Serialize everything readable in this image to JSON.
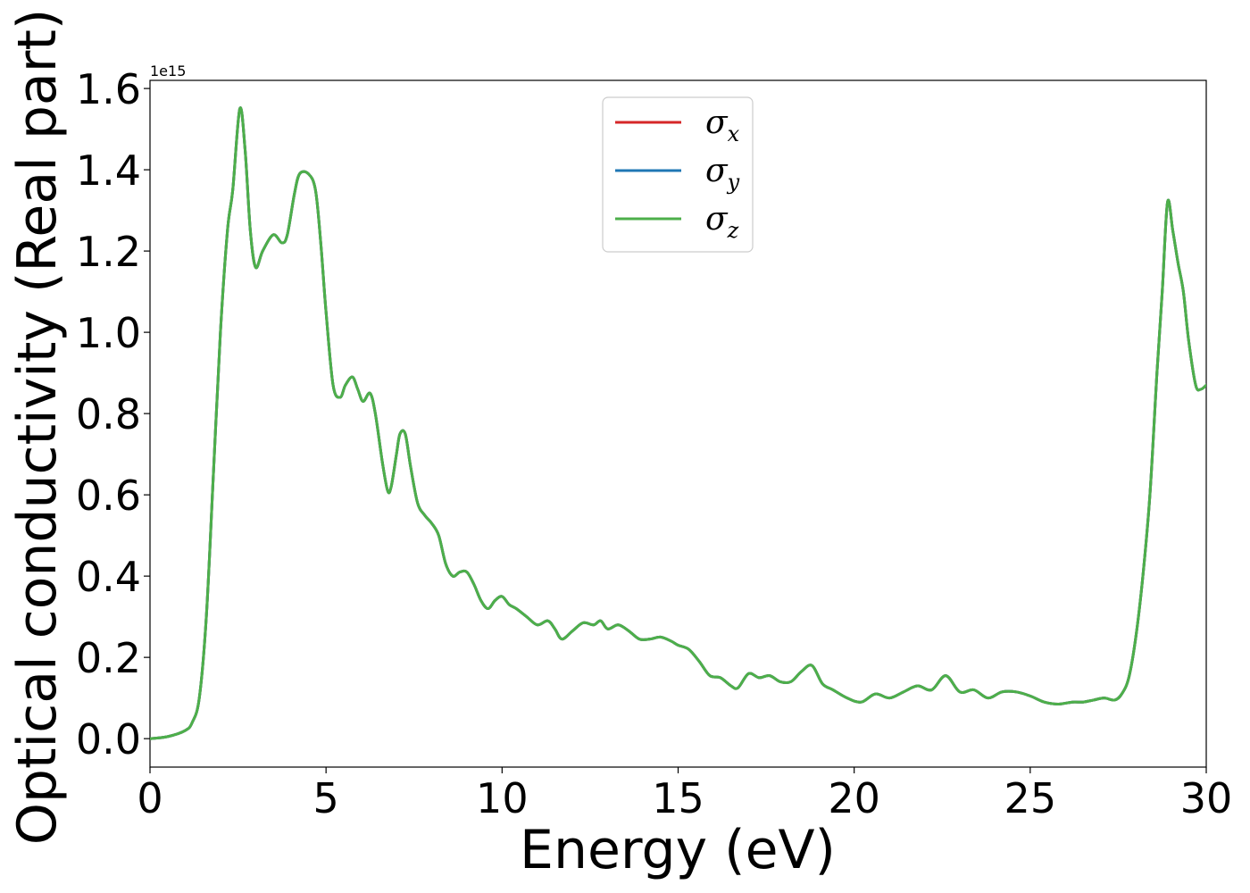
{
  "chart_data": {
    "type": "line",
    "xlabel": "Energy (eV)",
    "ylabel": "Optical conductivity (Real part)",
    "y_offset_text": "1e15",
    "xlim": [
      0,
      30
    ],
    "ylim": [
      -0.07,
      1.62
    ],
    "y_scale_factor": 1000000000000000.0,
    "x_ticks": [
      0,
      5,
      10,
      15,
      20,
      25,
      30
    ],
    "x_tick_labels": [
      "0",
      "5",
      "10",
      "15",
      "20",
      "25",
      "30"
    ],
    "y_ticks": [
      0.0,
      0.2,
      0.4,
      0.6,
      0.8,
      1.0,
      1.2,
      1.4,
      1.6
    ],
    "y_tick_labels": [
      "0.0",
      "0.2",
      "0.4",
      "0.6",
      "0.8",
      "1.0",
      "1.2",
      "1.4",
      "1.6"
    ],
    "grid": false,
    "legend_position": "top-center",
    "legend": [
      {
        "symbol": "σ",
        "sub": "x",
        "color": "#d62728"
      },
      {
        "symbol": "σ",
        "sub": "y",
        "color": "#1f77b4"
      },
      {
        "symbol": "σ",
        "sub": "z",
        "color": "#4daf4a"
      }
    ],
    "series_note": "All three series overlap; values given in units of 1e15",
    "x": [
      0,
      0.5,
      1.0,
      1.2,
      1.4,
      1.6,
      1.8,
      2.0,
      2.2,
      2.35,
      2.55,
      2.7,
      2.85,
      3.0,
      3.2,
      3.5,
      3.75,
      3.9,
      4.1,
      4.25,
      4.5,
      4.7,
      4.85,
      5.0,
      5.2,
      5.4,
      5.55,
      5.75,
      5.9,
      6.05,
      6.25,
      6.4,
      6.6,
      6.75,
      6.85,
      7.0,
      7.1,
      7.25,
      7.4,
      7.6,
      7.8,
      8.0,
      8.2,
      8.4,
      8.6,
      8.8,
      9.0,
      9.2,
      9.4,
      9.6,
      9.8,
      10.0,
      10.2,
      10.4,
      10.7,
      11.0,
      11.3,
      11.5,
      11.7,
      12.0,
      12.3,
      12.6,
      12.8,
      13.0,
      13.3,
      13.6,
      13.9,
      14.2,
      14.5,
      14.8,
      15.0,
      15.3,
      15.6,
      15.9,
      16.2,
      16.5,
      16.7,
      17.0,
      17.3,
      17.6,
      17.9,
      18.2,
      18.5,
      18.8,
      19.1,
      19.4,
      19.8,
      20.2,
      20.6,
      21.0,
      21.4,
      21.8,
      22.2,
      22.6,
      23.0,
      23.4,
      23.8,
      24.2,
      24.6,
      25.0,
      25.4,
      25.8,
      26.2,
      26.5,
      26.8,
      27.1,
      27.4,
      27.6,
      27.8,
      28.0,
      28.2,
      28.4,
      28.6,
      28.75,
      28.9,
      29.05,
      29.2,
      29.35,
      29.5,
      29.7,
      29.85,
      30.0
    ],
    "y": [
      0.0,
      0.005,
      0.02,
      0.04,
      0.1,
      0.3,
      0.65,
      1.0,
      1.25,
      1.35,
      1.55,
      1.45,
      1.25,
      1.16,
      1.2,
      1.24,
      1.22,
      1.24,
      1.34,
      1.39,
      1.39,
      1.35,
      1.22,
      1.05,
      0.87,
      0.84,
      0.87,
      0.89,
      0.86,
      0.83,
      0.85,
      0.8,
      0.68,
      0.61,
      0.62,
      0.7,
      0.75,
      0.75,
      0.67,
      0.58,
      0.55,
      0.53,
      0.5,
      0.43,
      0.4,
      0.41,
      0.41,
      0.38,
      0.34,
      0.32,
      0.34,
      0.35,
      0.33,
      0.32,
      0.3,
      0.28,
      0.29,
      0.27,
      0.245,
      0.265,
      0.285,
      0.28,
      0.29,
      0.27,
      0.28,
      0.265,
      0.245,
      0.245,
      0.25,
      0.24,
      0.23,
      0.22,
      0.19,
      0.155,
      0.15,
      0.13,
      0.125,
      0.16,
      0.15,
      0.155,
      0.14,
      0.14,
      0.165,
      0.18,
      0.135,
      0.12,
      0.1,
      0.09,
      0.11,
      0.1,
      0.115,
      0.13,
      0.12,
      0.155,
      0.115,
      0.12,
      0.1,
      0.115,
      0.115,
      0.105,
      0.09,
      0.085,
      0.09,
      0.09,
      0.095,
      0.1,
      0.095,
      0.11,
      0.15,
      0.25,
      0.4,
      0.6,
      0.9,
      1.1,
      1.32,
      1.25,
      1.17,
      1.1,
      0.98,
      0.87,
      0.86,
      0.87
    ]
  }
}
